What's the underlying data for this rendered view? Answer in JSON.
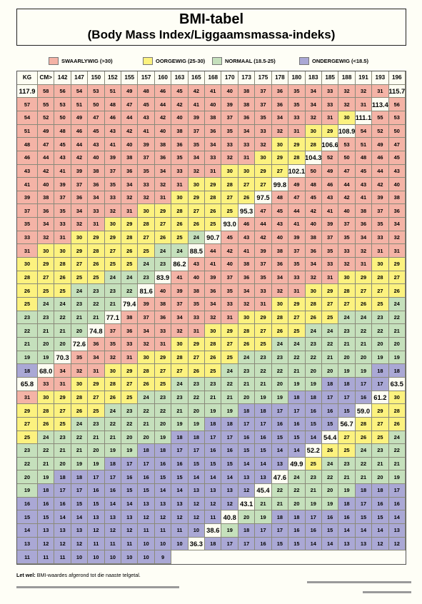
{
  "title": "BMI-tabel",
  "subtitle": "(Body Mass Index/Liggaamsmassa-indeks)",
  "legend": [
    {
      "label": "SWAARLYWIG (>30)",
      "color": "#f4b3a6"
    },
    {
      "label": "OORGEWIG (25-30)",
      "color": "#fcf27f"
    },
    {
      "label": "NORMAAL (18.5-25)",
      "color": "#c5e0bc"
    },
    {
      "label": "ONDERGEWIG (<18.5)",
      "color": "#aaa8d5"
    }
  ],
  "table": {
    "corner": "KG",
    "cm_label": "CM>",
    "heights": [
      "142",
      "147",
      "150",
      "152",
      "155",
      "157",
      "160",
      "163",
      "165",
      "168",
      "170",
      "173",
      "175",
      "178",
      "180",
      "183",
      "185",
      "188",
      "191",
      "193",
      "196"
    ],
    "rows": [
      {
        "kg": "117.9",
        "v": [
          58,
          56,
          54,
          53,
          51,
          49,
          48,
          46,
          45,
          42,
          41,
          40,
          38,
          37,
          36,
          35,
          34,
          33,
          32,
          32,
          31
        ]
      },
      {
        "kg": "115.7",
        "v": [
          57,
          55,
          53,
          51,
          50,
          48,
          47,
          45,
          44,
          42,
          41,
          40,
          39,
          38,
          37,
          36,
          35,
          34,
          33,
          32,
          31
        ]
      },
      {
        "kg": "113.4",
        "v": [
          56,
          54,
          52,
          50,
          49,
          47,
          46,
          44,
          43,
          42,
          40,
          39,
          38,
          37,
          36,
          35,
          34,
          33,
          32,
          31,
          30
        ]
      },
      {
        "kg": "111.1",
        "v": [
          55,
          53,
          51,
          49,
          48,
          46,
          45,
          43,
          42,
          41,
          40,
          38,
          37,
          36,
          35,
          34,
          33,
          32,
          31,
          30,
          29
        ]
      },
      {
        "kg": "108.9",
        "v": [
          54,
          52,
          50,
          48,
          47,
          45,
          44,
          43,
          41,
          40,
          39,
          38,
          36,
          35,
          34,
          33,
          33,
          32,
          30,
          29,
          28
        ]
      },
      {
        "kg": "106.6",
        "v": [
          53,
          51,
          49,
          47,
          46,
          44,
          43,
          42,
          40,
          39,
          38,
          37,
          36,
          35,
          34,
          33,
          32,
          31,
          30,
          29,
          28
        ]
      },
      {
        "kg": "104.3",
        "v": [
          52,
          50,
          48,
          46,
          45,
          43,
          42,
          41,
          39,
          38,
          37,
          36,
          35,
          34,
          33,
          32,
          31,
          30,
          30,
          29,
          27
        ]
      },
      {
        "kg": "102.1",
        "v": [
          50,
          49,
          47,
          45,
          44,
          43,
          41,
          40,
          39,
          37,
          36,
          35,
          34,
          33,
          32,
          31,
          30,
          29,
          28,
          27,
          27
        ]
      },
      {
        "kg": "99.8",
        "v": [
          49,
          48,
          46,
          44,
          43,
          42,
          40,
          39,
          38,
          37,
          36,
          34,
          33,
          32,
          32,
          31,
          30,
          29,
          28,
          27,
          26
        ]
      },
      {
        "kg": "97.5",
        "v": [
          48,
          47,
          45,
          43,
          42,
          41,
          39,
          38,
          37,
          36,
          35,
          34,
          33,
          32,
          31,
          30,
          29,
          28,
          27,
          26,
          25
        ]
      },
      {
        "kg": "95.3",
        "v": [
          47,
          45,
          44,
          42,
          41,
          40,
          38,
          37,
          36,
          35,
          34,
          33,
          32,
          31,
          30,
          29,
          28,
          27,
          26,
          26,
          25
        ]
      },
      {
        "kg": "93.0",
        "v": [
          46,
          44,
          43,
          41,
          40,
          39,
          37,
          36,
          35,
          34,
          33,
          32,
          31,
          30,
          29,
          29,
          28,
          27,
          26,
          25,
          24
        ]
      },
      {
        "kg": "90.7",
        "v": [
          45,
          43,
          42,
          40,
          39,
          38,
          37,
          35,
          34,
          33,
          32,
          31,
          30,
          30,
          29,
          28,
          27,
          26,
          25,
          24,
          24
        ]
      },
      {
        "kg": "88.5",
        "v": [
          44,
          42,
          41,
          39,
          38,
          37,
          36,
          35,
          33,
          32,
          31,
          31,
          30,
          29,
          28,
          27,
          26,
          25,
          25,
          24,
          23
        ]
      },
      {
        "kg": "86.2",
        "v": [
          43,
          41,
          40,
          38,
          37,
          36,
          35,
          34,
          33,
          32,
          31,
          30,
          29,
          28,
          27,
          26,
          25,
          25,
          24,
          24,
          23
        ]
      },
      {
        "kg": "83.9",
        "v": [
          41,
          40,
          39,
          37,
          36,
          35,
          34,
          33,
          32,
          31,
          30,
          29,
          28,
          27,
          26,
          25,
          25,
          24,
          23,
          23,
          22
        ]
      },
      {
        "kg": "81.6",
        "v": [
          40,
          39,
          38,
          36,
          35,
          34,
          33,
          32,
          31,
          30,
          29,
          28,
          27,
          27,
          26,
          25,
          24,
          24,
          23,
          22,
          21
        ]
      },
      {
        "kg": "79.4",
        "v": [
          39,
          38,
          37,
          35,
          34,
          33,
          32,
          31,
          30,
          29,
          28,
          27,
          27,
          26,
          25,
          24,
          23,
          23,
          22,
          21,
          21
        ]
      },
      {
        "kg": "77.1",
        "v": [
          38,
          37,
          36,
          34,
          33,
          32,
          31,
          30,
          29,
          28,
          27,
          26,
          25,
          24,
          24,
          23,
          22,
          22,
          21,
          21,
          20
        ]
      },
      {
        "kg": "74.8",
        "v": [
          37,
          36,
          34,
          33,
          32,
          31,
          30,
          29,
          28,
          27,
          26,
          25,
          24,
          24,
          23,
          22,
          22,
          21,
          21,
          20,
          20
        ]
      },
      {
        "kg": "72.6",
        "v": [
          36,
          35,
          33,
          32,
          31,
          30,
          29,
          28,
          27,
          26,
          25,
          24,
          24,
          23,
          22,
          21,
          21,
          20,
          20,
          19,
          19
        ]
      },
      {
        "kg": "70.3",
        "v": [
          35,
          34,
          32,
          31,
          30,
          29,
          28,
          27,
          26,
          25,
          24,
          23,
          23,
          22,
          22,
          21,
          20,
          20,
          19,
          19,
          18
        ]
      },
      {
        "kg": "68.0",
        "v": [
          34,
          32,
          31,
          30,
          29,
          28,
          27,
          27,
          26,
          25,
          24,
          23,
          22,
          22,
          21,
          20,
          20,
          19,
          19,
          18,
          18
        ]
      },
      {
        "kg": "65.8",
        "v": [
          33,
          31,
          30,
          29,
          28,
          27,
          26,
          25,
          24,
          23,
          23,
          22,
          21,
          21,
          20,
          19,
          19,
          18,
          18,
          17,
          17
        ]
      },
      {
        "kg": "63.5",
        "v": [
          31,
          30,
          29,
          28,
          27,
          26,
          25,
          24,
          23,
          23,
          22,
          21,
          21,
          20,
          19,
          19,
          18,
          18,
          17,
          17,
          16
        ]
      },
      {
        "kg": "61.2",
        "v": [
          30,
          29,
          28,
          27,
          26,
          25,
          24,
          23,
          22,
          22,
          21,
          20,
          19,
          19,
          18,
          18,
          17,
          17,
          16,
          16,
          15
        ]
      },
      {
        "kg": "59.0",
        "v": [
          29,
          28,
          27,
          26,
          25,
          24,
          23,
          22,
          22,
          21,
          20,
          19,
          19,
          18,
          18,
          17,
          17,
          16,
          16,
          15,
          15
        ]
      },
      {
        "kg": "56.7",
        "v": [
          28,
          27,
          26,
          25,
          24,
          23,
          22,
          21,
          21,
          20,
          20,
          19,
          18,
          18,
          17,
          17,
          16,
          16,
          15,
          15,
          14
        ]
      },
      {
        "kg": "54.4",
        "v": [
          27,
          26,
          25,
          24,
          23,
          22,
          21,
          21,
          20,
          19,
          19,
          18,
          18,
          17,
          17,
          16,
          16,
          15,
          15,
          14,
          14
        ]
      },
      {
        "kg": "52.2",
        "v": [
          26,
          25,
          24,
          23,
          22,
          22,
          21,
          20,
          19,
          19,
          18,
          17,
          17,
          16,
          16,
          15,
          15,
          15,
          14,
          14,
          13
        ]
      },
      {
        "kg": "49.9",
        "v": [
          25,
          24,
          23,
          22,
          21,
          21,
          20,
          19,
          18,
          18,
          17,
          17,
          16,
          16,
          15,
          15,
          14,
          14,
          14,
          13,
          13
        ]
      },
      {
        "kg": "47.6",
        "v": [
          24,
          23,
          22,
          21,
          21,
          20,
          19,
          19,
          18,
          17,
          17,
          16,
          16,
          15,
          15,
          14,
          14,
          13,
          13,
          13,
          12
        ]
      },
      {
        "kg": "45.4",
        "v": [
          22,
          22,
          21,
          20,
          19,
          18,
          18,
          17,
          16,
          16,
          16,
          15,
          15,
          14,
          14,
          13,
          13,
          13,
          12,
          12,
          12
        ]
      },
      {
        "kg": "43.1",
        "v": [
          21,
          21,
          20,
          19,
          19,
          18,
          17,
          16,
          16,
          15,
          15,
          14,
          14,
          13,
          13,
          13,
          12,
          12,
          12,
          12,
          11
        ]
      },
      {
        "kg": "40.8",
        "v": [
          20,
          19,
          18,
          18,
          17,
          16,
          16,
          15,
          15,
          14,
          14,
          13,
          13,
          13,
          12,
          12,
          12,
          11,
          11,
          11,
          10
        ]
      },
      {
        "kg": "38.6",
        "v": [
          19,
          18,
          17,
          17,
          16,
          16,
          15,
          14,
          14,
          14,
          13,
          13,
          12,
          12,
          12,
          11,
          11,
          11,
          10,
          10,
          10
        ]
      },
      {
        "kg": "36.3",
        "v": [
          18,
          17,
          17,
          16,
          15,
          15,
          14,
          14,
          13,
          13,
          12,
          12,
          11,
          11,
          11,
          10,
          10,
          10,
          10,
          10,
          9
        ]
      }
    ]
  },
  "footnote_bold": "Let wel:",
  "footnote": " BMI-waardes afgerond tot die naaste telgetal."
}
